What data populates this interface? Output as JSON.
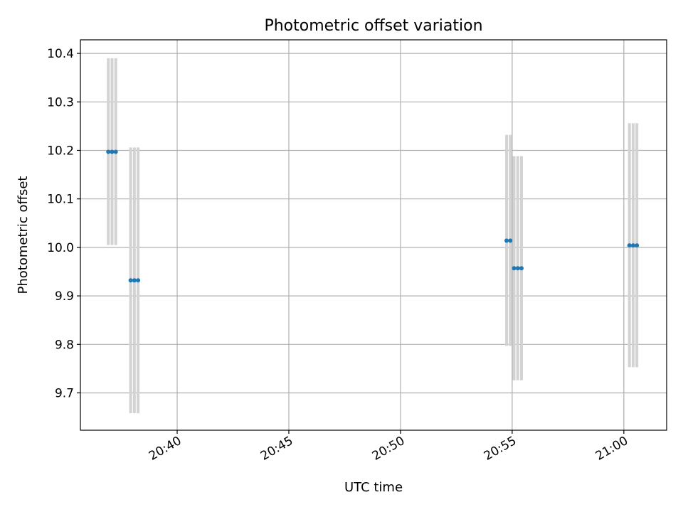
{
  "chart_data": {
    "type": "scatter",
    "title": "Photometric offset variation",
    "xlabel": "UTC time",
    "ylabel": "Photometric offset",
    "xlim": [
      "20:35:40",
      "21:01:55"
    ],
    "ylim": [
      9.623,
      10.428
    ],
    "grid": true,
    "x_ticks": [
      "20:40",
      "20:45",
      "20:50",
      "20:55",
      "21:00"
    ],
    "y_ticks": [
      "9.7",
      "9.8",
      "9.9",
      "10.0",
      "10.1",
      "10.2",
      "10.3",
      "10.4"
    ],
    "marker_color": "#1f77b4",
    "errorbar_color": "#d3d3d3",
    "series": [
      {
        "points": [
          {
            "x": "20:36:55",
            "y": 10.197,
            "ylow": 10.005,
            "yhigh": 10.39
          },
          {
            "x": "20:37:05",
            "y": 10.197,
            "ylow": 10.005,
            "yhigh": 10.39
          },
          {
            "x": "20:37:15",
            "y": 10.197,
            "ylow": 10.005,
            "yhigh": 10.39
          },
          {
            "x": "20:37:55",
            "y": 9.932,
            "ylow": 9.658,
            "yhigh": 10.206
          },
          {
            "x": "20:38:05",
            "y": 9.932,
            "ylow": 9.658,
            "yhigh": 10.206
          },
          {
            "x": "20:38:15",
            "y": 9.932,
            "ylow": 9.658,
            "yhigh": 10.206
          },
          {
            "x": "20:54:45",
            "y": 10.014,
            "ylow": 9.797,
            "yhigh": 10.232
          },
          {
            "x": "20:54:55",
            "y": 10.014,
            "ylow": 9.797,
            "yhigh": 10.232
          },
          {
            "x": "20:55:05",
            "y": 9.957,
            "ylow": 9.726,
            "yhigh": 10.188
          },
          {
            "x": "20:55:15",
            "y": 9.957,
            "ylow": 9.726,
            "yhigh": 10.188
          },
          {
            "x": "20:55:25",
            "y": 9.957,
            "ylow": 9.726,
            "yhigh": 10.188
          },
          {
            "x": "21:00:15",
            "y": 10.004,
            "ylow": 9.753,
            "yhigh": 10.256
          },
          {
            "x": "21:00:25",
            "y": 10.004,
            "ylow": 9.753,
            "yhigh": 10.256
          },
          {
            "x": "21:00:35",
            "y": 10.004,
            "ylow": 9.753,
            "yhigh": 10.256
          }
        ]
      }
    ]
  }
}
